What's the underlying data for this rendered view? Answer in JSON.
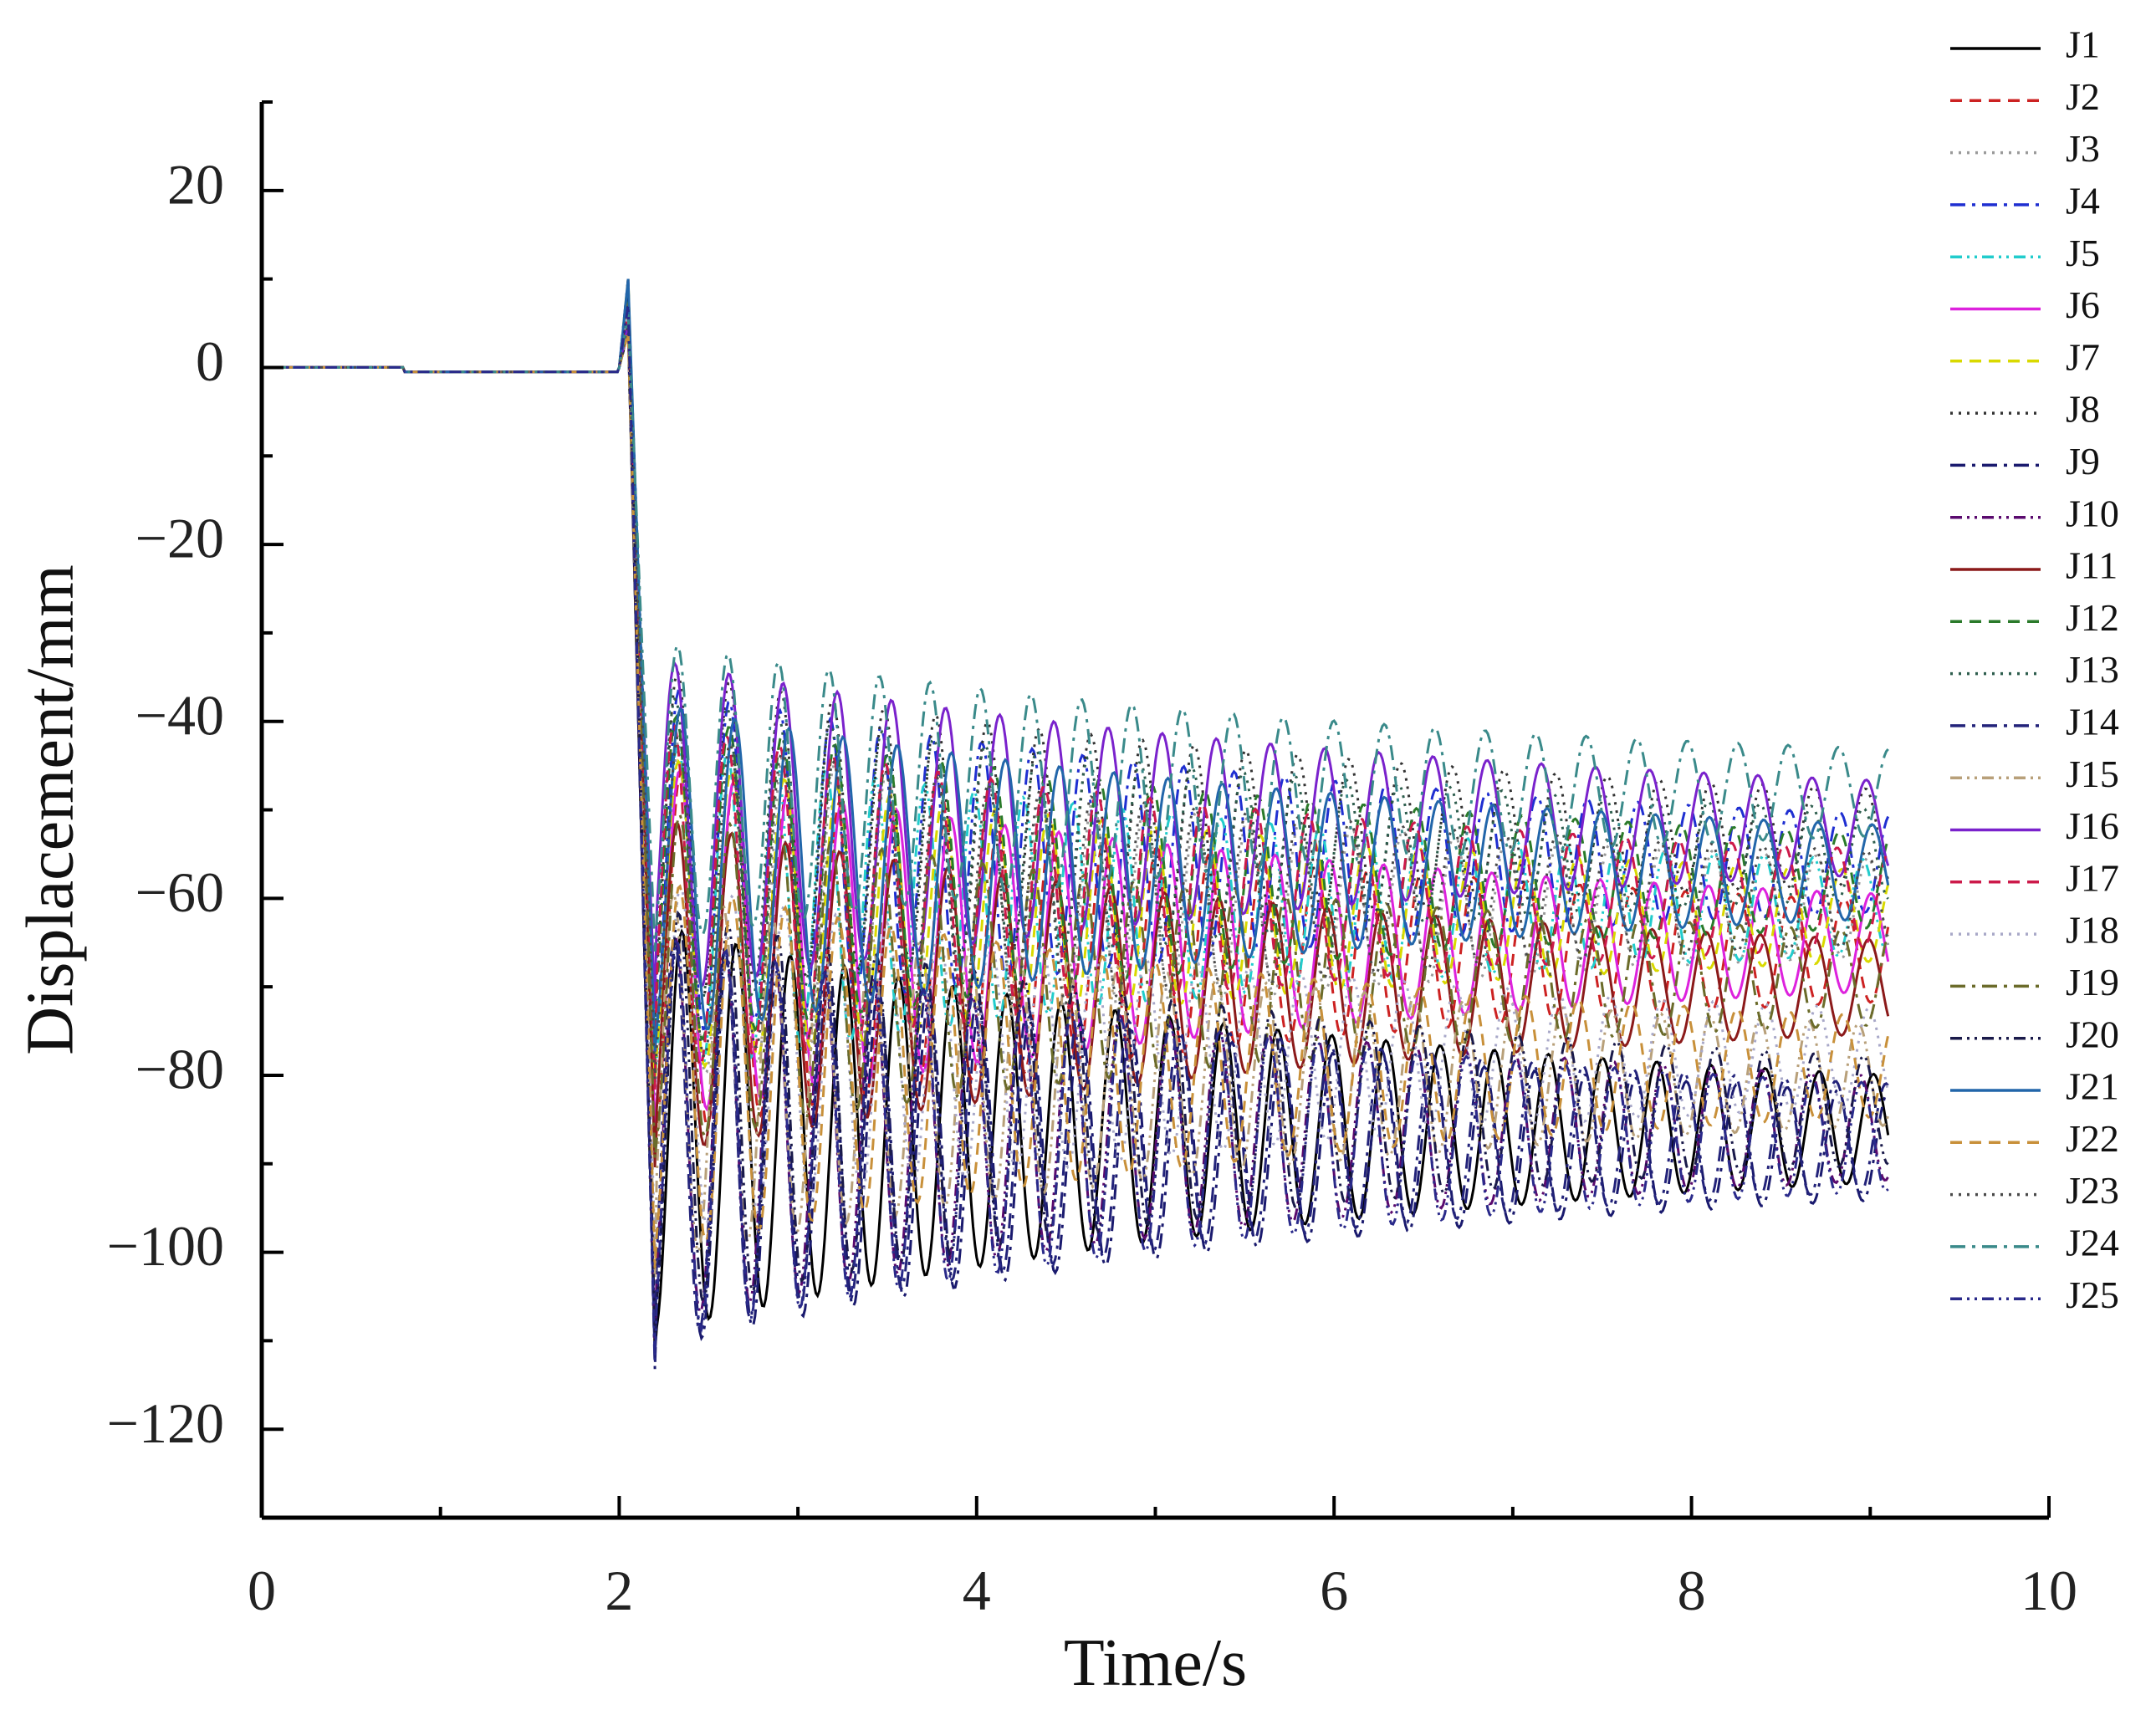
{
  "chart_data": {
    "type": "line",
    "title": "",
    "xlabel": "Time/s",
    "ylabel": "Displacement/mm",
    "xlim": [
      0,
      10
    ],
    "ylim": [
      -130,
      30
    ],
    "xticks": [
      0,
      2,
      4,
      6,
      8,
      10
    ],
    "yticks": [
      20,
      0,
      -20,
      -40,
      -60,
      -80,
      -100,
      -120
    ],
    "grid": false,
    "legend_position": "right",
    "series": [
      {
        "name": "J1",
        "color": "#000000",
        "dash": "solid",
        "final": -86,
        "amp": 21
      },
      {
        "name": "J2",
        "color": "#cc2222",
        "dash": "dash",
        "final": -66,
        "amp": 19
      },
      {
        "name": "J3",
        "color": "#9a9a9a",
        "dash": "dot",
        "final": -61,
        "amp": 18
      },
      {
        "name": "J4",
        "color": "#1f2fd1",
        "dash": "dashdot",
        "final": -56,
        "amp": 18
      },
      {
        "name": "J5",
        "color": "#22cccc",
        "dash": "dashdotdot",
        "final": -61,
        "amp": 17
      },
      {
        "name": "J6",
        "color": "#dd22dd",
        "dash": "solid",
        "final": -65,
        "amp": 18
      },
      {
        "name": "J7",
        "color": "#d9d900",
        "dash": "dash",
        "final": -62,
        "amp": 16
      },
      {
        "name": "J8",
        "color": "#333333",
        "dash": "dot",
        "final": -53,
        "amp": 17
      },
      {
        "name": "J9",
        "color": "#1a1a6e",
        "dash": "dashdot",
        "final": -88,
        "amp": 21
      },
      {
        "name": "J10",
        "color": "#5a0a6e",
        "dash": "dashdotdot",
        "final": -86,
        "amp": 20
      },
      {
        "name": "J11",
        "color": "#8b1a1a",
        "dash": "solid",
        "final": -70,
        "amp": 17
      },
      {
        "name": "J12",
        "color": "#2a7a2a",
        "dash": "dash",
        "final": -58,
        "amp": 17
      },
      {
        "name": "J13",
        "color": "#2e5e4e",
        "dash": "dot",
        "final": -55,
        "amp": 16
      },
      {
        "name": "J14",
        "color": "#23237a",
        "dash": "dashdot",
        "final": -87,
        "amp": 21
      },
      {
        "name": "J15",
        "color": "#b8a07a",
        "dash": "dashdotdot",
        "final": -80,
        "amp": 19
      },
      {
        "name": "J16",
        "color": "#7a22cc",
        "dash": "solid",
        "final": -52,
        "amp": 17
      },
      {
        "name": "J17",
        "color": "#cc1a4a",
        "dash": "dash",
        "final": -60,
        "amp": 18
      },
      {
        "name": "J18",
        "color": "#a8a8c8",
        "dash": "dot",
        "final": -78,
        "amp": 18
      },
      {
        "name": "J19",
        "color": "#6b6b2a",
        "dash": "dashdot",
        "final": -69,
        "amp": 17
      },
      {
        "name": "J20",
        "color": "#1a1a4a",
        "dash": "dashdotdot",
        "final": -84,
        "amp": 21
      },
      {
        "name": "J21",
        "color": "#2266aa",
        "dash": "solid",
        "final": -57,
        "amp": 17
      },
      {
        "name": "J22",
        "color": "#c8903a",
        "dash": "dash",
        "final": -79,
        "amp": 19
      },
      {
        "name": "J23",
        "color": "#4a4a4a",
        "dash": "dot",
        "final": -60,
        "amp": 17
      },
      {
        "name": "J24",
        "color": "#3a8a8a",
        "dash": "dashdot",
        "final": -48,
        "amp": 15
      },
      {
        "name": "J25",
        "color": "#2a2a8a",
        "dash": "dashdotdot",
        "final": -87,
        "amp": 21
      }
    ]
  }
}
